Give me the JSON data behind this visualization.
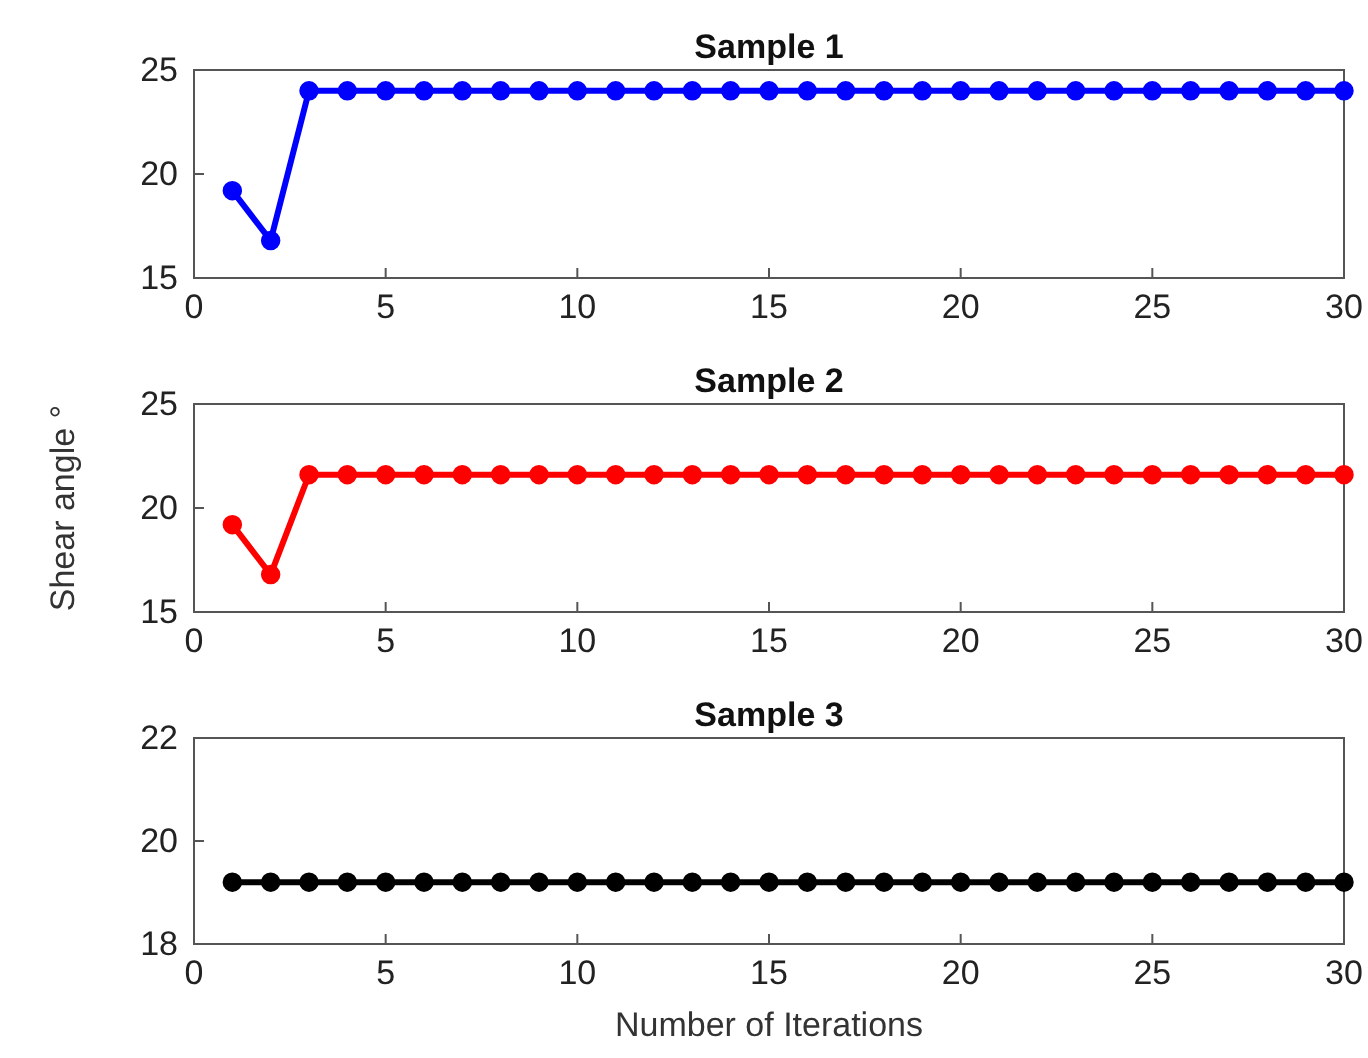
{
  "chart_data": [
    {
      "type": "line",
      "title": "Sample 1",
      "x": [
        1,
        2,
        3,
        4,
        5,
        6,
        7,
        8,
        9,
        10,
        11,
        12,
        13,
        14,
        15,
        16,
        17,
        18,
        19,
        20,
        21,
        22,
        23,
        24,
        25,
        26,
        27,
        28,
        29,
        30
      ],
      "values": [
        19.2,
        16.8,
        24,
        24,
        24,
        24,
        24,
        24,
        24,
        24,
        24,
        24,
        24,
        24,
        24,
        24,
        24,
        24,
        24,
        24,
        24,
        24,
        24,
        24,
        24,
        24,
        24,
        24,
        24,
        24
      ],
      "color": "#0000ff",
      "xlim": [
        0,
        30
      ],
      "xticks": [
        0,
        5,
        10,
        15,
        20,
        25,
        30
      ],
      "ylim": [
        15,
        25
      ],
      "yticks": [
        15,
        20,
        25
      ],
      "marker": "circle",
      "line_style": "solid",
      "grid": false
    },
    {
      "type": "line",
      "title": "Sample 2",
      "ylabel": "Shear angle °",
      "x": [
        1,
        2,
        3,
        4,
        5,
        6,
        7,
        8,
        9,
        10,
        11,
        12,
        13,
        14,
        15,
        16,
        17,
        18,
        19,
        20,
        21,
        22,
        23,
        24,
        25,
        26,
        27,
        28,
        29,
        30
      ],
      "values": [
        19.2,
        16.8,
        21.6,
        21.6,
        21.6,
        21.6,
        21.6,
        21.6,
        21.6,
        21.6,
        21.6,
        21.6,
        21.6,
        21.6,
        21.6,
        21.6,
        21.6,
        21.6,
        21.6,
        21.6,
        21.6,
        21.6,
        21.6,
        21.6,
        21.6,
        21.6,
        21.6,
        21.6,
        21.6,
        21.6
      ],
      "color": "#ff0000",
      "xlim": [
        0,
        30
      ],
      "xticks": [
        0,
        5,
        10,
        15,
        20,
        25,
        30
      ],
      "ylim": [
        15,
        25
      ],
      "yticks": [
        15,
        20,
        25
      ],
      "marker": "circle",
      "line_style": "solid",
      "grid": false
    },
    {
      "type": "line",
      "title": "Sample 3",
      "xlabel": "Number of Iterations",
      "x": [
        1,
        2,
        3,
        4,
        5,
        6,
        7,
        8,
        9,
        10,
        11,
        12,
        13,
        14,
        15,
        16,
        17,
        18,
        19,
        20,
        21,
        22,
        23,
        24,
        25,
        26,
        27,
        28,
        29,
        30
      ],
      "values": [
        19.2,
        19.2,
        19.2,
        19.2,
        19.2,
        19.2,
        19.2,
        19.2,
        19.2,
        19.2,
        19.2,
        19.2,
        19.2,
        19.2,
        19.2,
        19.2,
        19.2,
        19.2,
        19.2,
        19.2,
        19.2,
        19.2,
        19.2,
        19.2,
        19.2,
        19.2,
        19.2,
        19.2,
        19.2,
        19.2
      ],
      "color": "#000000",
      "xlim": [
        0,
        30
      ],
      "xticks": [
        0,
        5,
        10,
        15,
        20,
        25,
        30
      ],
      "ylim": [
        18,
        22
      ],
      "yticks": [
        18,
        20,
        22
      ],
      "marker": "circle",
      "line_style": "solid",
      "grid": false
    }
  ]
}
